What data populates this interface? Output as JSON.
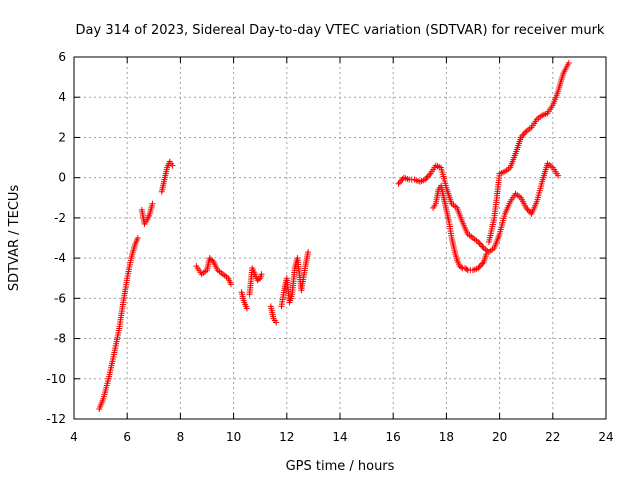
{
  "chart_data": {
    "type": "scatter",
    "title": "Day 314 of 2023, Sidereal Day-to-day VTEC variation (SDTVAR) for receiver murk",
    "xlabel": "GPS time / hours",
    "ylabel": "SDTVAR / TECUs",
    "xlim": [
      4,
      24
    ],
    "ylim": [
      -12,
      6
    ],
    "xticks": [
      4,
      6,
      8,
      10,
      12,
      14,
      16,
      18,
      20,
      22,
      24
    ],
    "yticks": [
      -12,
      -10,
      -8,
      -6,
      -4,
      -2,
      0,
      2,
      4,
      6
    ],
    "grid": true,
    "marker": "+",
    "color": "#ff0000",
    "series": [
      {
        "name": "SDTVAR",
        "segments": [
          {
            "x": [
              4.95,
              5.1,
              5.3,
              5.5,
              5.7,
              5.85,
              6.0,
              6.15,
              6.3,
              6.4
            ],
            "y": [
              -11.5,
              -11.0,
              -10.0,
              -8.8,
              -7.5,
              -6.2,
              -5.0,
              -4.0,
              -3.3,
              -3.0
            ]
          },
          {
            "x": [
              6.55,
              6.65,
              6.75,
              6.85,
              6.95
            ],
            "y": [
              -1.6,
              -2.3,
              -2.1,
              -1.8,
              -1.3
            ]
          },
          {
            "x": [
              7.3,
              7.4,
              7.5,
              7.6,
              7.7
            ],
            "y": [
              -0.7,
              -0.1,
              0.5,
              0.8,
              0.6
            ]
          },
          {
            "x": [
              8.6,
              8.8,
              9.0,
              9.1,
              9.25,
              9.4,
              9.6,
              9.8,
              9.9
            ],
            "y": [
              -4.4,
              -4.8,
              -4.6,
              -4.0,
              -4.2,
              -4.6,
              -4.8,
              -5.0,
              -5.3
            ]
          },
          {
            "x": [
              10.3,
              10.4,
              10.5
            ],
            "y": [
              -5.7,
              -6.2,
              -6.5
            ]
          },
          {
            "x": [
              10.6,
              10.7,
              10.8,
              10.9,
              11.0,
              11.05
            ],
            "y": [
              -5.8,
              -4.5,
              -4.8,
              -5.1,
              -5.0,
              -4.8
            ]
          },
          {
            "x": [
              11.4,
              11.5,
              11.6
            ],
            "y": [
              -6.4,
              -7.0,
              -7.2
            ]
          },
          {
            "x": [
              11.8,
              11.9,
              12.0,
              12.1,
              12.2,
              12.3,
              12.4,
              12.55,
              12.7,
              12.8
            ],
            "y": [
              -6.4,
              -5.6,
              -5.0,
              -6.2,
              -5.8,
              -4.5,
              -4.0,
              -5.6,
              -4.4,
              -3.7
            ]
          },
          {
            "x": [
              16.2,
              16.4,
              16.6,
              16.8,
              17.0,
              17.2,
              17.4,
              17.6,
              17.8,
              18.0,
              18.2,
              18.4,
              18.6,
              18.8,
              19.0,
              19.2,
              19.4,
              19.6,
              19.8,
              20.0,
              20.2,
              20.4,
              20.6,
              20.8,
              21.0,
              21.2,
              21.4,
              21.6,
              21.8,
              22.0,
              22.2
            ],
            "y": [
              -0.3,
              0.0,
              -0.1,
              -0.1,
              -0.2,
              -0.1,
              0.2,
              0.6,
              0.5,
              -0.5,
              -1.3,
              -1.5,
              -2.2,
              -2.8,
              -3.0,
              -3.2,
              -3.5,
              -3.7,
              -3.5,
              -2.8,
              -1.8,
              -1.2,
              -0.8,
              -1.0,
              -1.5,
              -1.8,
              -1.2,
              -0.2,
              0.7,
              0.5,
              0.1
            ]
          },
          {
            "x": [
              17.5,
              17.6,
              17.7,
              17.8,
              17.9,
              18.0,
              18.1,
              18.2,
              18.3,
              18.4,
              18.5,
              18.6,
              18.7,
              18.8,
              19.0,
              19.2,
              19.4,
              19.5
            ],
            "y": [
              -1.5,
              -1.3,
              -0.6,
              -0.4,
              -1.0,
              -1.6,
              -2.2,
              -3.0,
              -3.6,
              -4.1,
              -4.4,
              -4.5,
              -4.5,
              -4.6,
              -4.6,
              -4.5,
              -4.2,
              -3.8
            ]
          },
          {
            "x": [
              19.6,
              19.8,
              20.0,
              20.2,
              20.4,
              20.6,
              20.8,
              21.0,
              21.2,
              21.4,
              21.6,
              21.8,
              22.0,
              22.2,
              22.4,
              22.6
            ],
            "y": [
              -3.2,
              -2.0,
              0.2,
              0.3,
              0.5,
              1.2,
              2.0,
              2.3,
              2.5,
              2.9,
              3.1,
              3.2,
              3.6,
              4.3,
              5.2,
              5.7
            ]
          }
        ]
      }
    ]
  }
}
